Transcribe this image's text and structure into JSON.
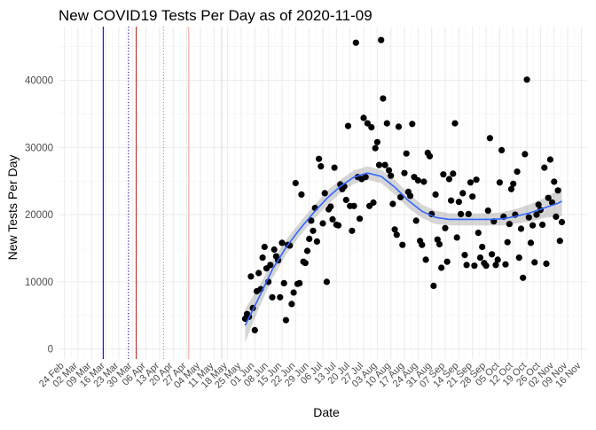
{
  "chart_data": {
    "type": "scatter",
    "title": "New COVID19 Tests Per Day as of 2020-11-09",
    "xlabel": "Date",
    "ylabel": "New Tests Per Day",
    "xlim": [
      "2020-02-21",
      "2020-11-19"
    ],
    "ylim": [
      -1500,
      48000
    ],
    "yticks": [
      0,
      10000,
      20000,
      30000,
      40000
    ],
    "xticks": [
      "24 Feb",
      "02 Mar",
      "09 Mar",
      "16 Mar",
      "23 Mar",
      "30 Mar",
      "06 Apr",
      "13 Apr",
      "20 Apr",
      "27 Apr",
      "04 May",
      "11 May",
      "18 May",
      "25 May",
      "01 Jun",
      "08 Jun",
      "15 Jun",
      "22 Jun",
      "29 Jun",
      "06 Jul",
      "13 Jul",
      "20 Jul",
      "27 Jul",
      "03 Aug",
      "10 Aug",
      "17 Aug",
      "24 Aug",
      "31 Aug",
      "07 Sep",
      "14 Sep",
      "21 Sep",
      "28 Sep",
      "05 Oct",
      "12 Oct",
      "19 Oct",
      "26 Oct",
      "02 Nov",
      "09 Nov",
      "16 Nov"
    ],
    "grid": true,
    "vlines": [
      {
        "date": "2020-03-15",
        "color": "#0000ff",
        "style": "solid"
      },
      {
        "date": "2020-03-28",
        "color": "#00008b",
        "style": "dotted"
      },
      {
        "date": "2020-04-01",
        "color": "#b22222",
        "style": "solid"
      },
      {
        "date": "2020-04-15",
        "color": "#cd853f",
        "style": "dotted"
      },
      {
        "date": "2020-04-28",
        "color": "#f4a6a6",
        "style": "solid"
      },
      {
        "date": "2020-05-15",
        "color": "#dddddd",
        "style": "solid"
      }
    ],
    "series": [
      {
        "type": "scatter",
        "color": "#000000",
        "points": [
          [
            "2020-05-27",
            4500
          ],
          [
            "2020-05-28",
            5200
          ],
          [
            "2020-05-29",
            4800
          ],
          [
            "2020-05-30",
            10800
          ],
          [
            "2020-05-31",
            6100
          ],
          [
            "2020-06-01",
            2800
          ],
          [
            "2020-06-02",
            8600
          ],
          [
            "2020-06-03",
            11300
          ],
          [
            "2020-06-04",
            8900
          ],
          [
            "2020-06-05",
            13600
          ],
          [
            "2020-06-06",
            15200
          ],
          [
            "2020-06-07",
            12000
          ],
          [
            "2020-06-08",
            10000
          ],
          [
            "2020-06-09",
            12500
          ],
          [
            "2020-06-10",
            7700
          ],
          [
            "2020-06-11",
            14800
          ],
          [
            "2020-06-12",
            13800
          ],
          [
            "2020-06-13",
            13200
          ],
          [
            "2020-06-14",
            7700
          ],
          [
            "2020-06-15",
            15800
          ],
          [
            "2020-06-16",
            9800
          ],
          [
            "2020-06-17",
            4300
          ],
          [
            "2020-06-18",
            15500
          ],
          [
            "2020-06-19",
            15400
          ],
          [
            "2020-06-20",
            6700
          ],
          [
            "2020-06-21",
            8400
          ],
          [
            "2020-06-22",
            24700
          ],
          [
            "2020-06-23",
            9700
          ],
          [
            "2020-06-24",
            9800
          ],
          [
            "2020-06-25",
            23000
          ],
          [
            "2020-06-26",
            13000
          ],
          [
            "2020-06-27",
            12800
          ],
          [
            "2020-06-28",
            14600
          ],
          [
            "2020-06-29",
            16400
          ],
          [
            "2020-06-30",
            19100
          ],
          [
            "2020-07-01",
            17600
          ],
          [
            "2020-07-02",
            21000
          ],
          [
            "2020-07-03",
            16000
          ],
          [
            "2020-07-04",
            28300
          ],
          [
            "2020-07-05",
            27200
          ],
          [
            "2020-07-06",
            18700
          ],
          [
            "2020-07-07",
            23200
          ],
          [
            "2020-07-08",
            10000
          ],
          [
            "2020-07-09",
            20800
          ],
          [
            "2020-07-10",
            21200
          ],
          [
            "2020-07-11",
            19300
          ],
          [
            "2020-07-12",
            27000
          ],
          [
            "2020-07-13",
            18500
          ],
          [
            "2020-07-14",
            18400
          ],
          [
            "2020-07-15",
            24500
          ],
          [
            "2020-07-16",
            23800
          ],
          [
            "2020-07-17",
            24200
          ],
          [
            "2020-07-18",
            22200
          ],
          [
            "2020-07-19",
            33200
          ],
          [
            "2020-07-20",
            21300
          ],
          [
            "2020-07-21",
            17600
          ],
          [
            "2020-07-22",
            21300
          ],
          [
            "2020-07-23",
            45600
          ],
          [
            "2020-07-24",
            25600
          ],
          [
            "2020-07-25",
            19400
          ],
          [
            "2020-07-26",
            25300
          ],
          [
            "2020-07-27",
            34400
          ],
          [
            "2020-07-28",
            25600
          ],
          [
            "2020-07-29",
            33600
          ],
          [
            "2020-07-30",
            21300
          ],
          [
            "2020-07-31",
            33000
          ],
          [
            "2020-08-01",
            21800
          ],
          [
            "2020-08-02",
            29900
          ],
          [
            "2020-08-03",
            30800
          ],
          [
            "2020-08-04",
            27400
          ],
          [
            "2020-08-05",
            46000
          ],
          [
            "2020-08-06",
            37300
          ],
          [
            "2020-08-07",
            27400
          ],
          [
            "2020-08-08",
            33600
          ],
          [
            "2020-08-09",
            26600
          ],
          [
            "2020-08-10",
            25800
          ],
          [
            "2020-08-11",
            21600
          ],
          [
            "2020-08-12",
            17800
          ],
          [
            "2020-08-13",
            17000
          ],
          [
            "2020-08-14",
            33100
          ],
          [
            "2020-08-15",
            22600
          ],
          [
            "2020-08-16",
            15500
          ],
          [
            "2020-08-17",
            26200
          ],
          [
            "2020-08-18",
            29100
          ],
          [
            "2020-08-19",
            23400
          ],
          [
            "2020-08-20",
            22800
          ],
          [
            "2020-08-21",
            33500
          ],
          [
            "2020-08-22",
            25600
          ],
          [
            "2020-08-23",
            19100
          ],
          [
            "2020-08-24",
            25100
          ],
          [
            "2020-08-25",
            16100
          ],
          [
            "2020-08-26",
            15500
          ],
          [
            "2020-08-27",
            24900
          ],
          [
            "2020-08-28",
            13300
          ],
          [
            "2020-08-29",
            29200
          ],
          [
            "2020-08-30",
            28700
          ],
          [
            "2020-08-31",
            20100
          ],
          [
            "2020-09-01",
            9400
          ],
          [
            "2020-09-02",
            23000
          ],
          [
            "2020-09-03",
            16300
          ],
          [
            "2020-09-04",
            15600
          ],
          [
            "2020-09-05",
            12100
          ],
          [
            "2020-09-06",
            26000
          ],
          [
            "2020-09-07",
            18000
          ],
          [
            "2020-09-08",
            13000
          ],
          [
            "2020-09-09",
            25300
          ],
          [
            "2020-09-10",
            22100
          ],
          [
            "2020-09-11",
            26100
          ],
          [
            "2020-09-12",
            33600
          ],
          [
            "2020-09-13",
            16600
          ],
          [
            "2020-09-14",
            21900
          ],
          [
            "2020-09-15",
            20100
          ],
          [
            "2020-09-16",
            23200
          ],
          [
            "2020-09-17",
            14000
          ],
          [
            "2020-09-18",
            12500
          ],
          [
            "2020-09-19",
            20100
          ],
          [
            "2020-09-20",
            24800
          ],
          [
            "2020-09-21",
            22700
          ],
          [
            "2020-09-22",
            12400
          ],
          [
            "2020-09-23",
            25200
          ],
          [
            "2020-09-24",
            17300
          ],
          [
            "2020-09-25",
            13600
          ],
          [
            "2020-09-26",
            15200
          ],
          [
            "2020-09-27",
            12800
          ],
          [
            "2020-09-28",
            12400
          ],
          [
            "2020-09-29",
            20600
          ],
          [
            "2020-09-30",
            31400
          ],
          [
            "2020-10-01",
            14100
          ],
          [
            "2020-10-02",
            19000
          ],
          [
            "2020-10-03",
            12500
          ],
          [
            "2020-10-04",
            13300
          ],
          [
            "2020-10-05",
            24800
          ],
          [
            "2020-10-06",
            29600
          ],
          [
            "2020-10-07",
            19700
          ],
          [
            "2020-10-08",
            12600
          ],
          [
            "2020-10-09",
            15900
          ],
          [
            "2020-10-10",
            18600
          ],
          [
            "2020-10-11",
            23800
          ],
          [
            "2020-10-12",
            24600
          ],
          [
            "2020-10-13",
            20000
          ],
          [
            "2020-10-14",
            26400
          ],
          [
            "2020-10-15",
            13600
          ],
          [
            "2020-10-16",
            17900
          ],
          [
            "2020-10-17",
            10600
          ],
          [
            "2020-10-18",
            29000
          ],
          [
            "2020-10-19",
            40100
          ],
          [
            "2020-10-20",
            19600
          ],
          [
            "2020-10-21",
            15800
          ],
          [
            "2020-10-22",
            18400
          ],
          [
            "2020-10-23",
            12900
          ],
          [
            "2020-10-24",
            20000
          ],
          [
            "2020-10-25",
            21500
          ],
          [
            "2020-10-26",
            20700
          ],
          [
            "2020-10-27",
            18500
          ],
          [
            "2020-10-28",
            27000
          ],
          [
            "2020-10-29",
            12700
          ],
          [
            "2020-10-30",
            22500
          ],
          [
            "2020-10-31",
            28200
          ],
          [
            "2020-11-01",
            21800
          ],
          [
            "2020-11-02",
            24900
          ],
          [
            "2020-11-03",
            19700
          ],
          [
            "2020-11-04",
            23600
          ],
          [
            "2020-11-05",
            16100
          ],
          [
            "2020-11-06",
            18900
          ]
        ]
      },
      {
        "type": "smooth",
        "color": "#3366ff",
        "band_color": "#999999",
        "points": [
          [
            "2020-05-27",
            3500,
            1000,
            6000
          ],
          [
            "2020-06-03",
            7600,
            6000,
            9200
          ],
          [
            "2020-06-10",
            11800,
            10500,
            13100
          ],
          [
            "2020-06-17",
            15100,
            14000,
            16200
          ],
          [
            "2020-06-24",
            17800,
            16800,
            18800
          ],
          [
            "2020-07-01",
            20200,
            19200,
            21200
          ],
          [
            "2020-07-08",
            22400,
            21300,
            23500
          ],
          [
            "2020-07-15",
            24200,
            23200,
            25200
          ],
          [
            "2020-07-22",
            25600,
            24600,
            26600
          ],
          [
            "2020-07-29",
            26200,
            25200,
            27200
          ],
          [
            "2020-08-05",
            25700,
            24700,
            26700
          ],
          [
            "2020-08-12",
            24100,
            23000,
            25200
          ],
          [
            "2020-08-19",
            22100,
            21000,
            23200
          ],
          [
            "2020-08-26",
            20500,
            19500,
            21500
          ],
          [
            "2020-09-02",
            19600,
            18600,
            20600
          ],
          [
            "2020-09-09",
            19300,
            18400,
            20200
          ],
          [
            "2020-09-16",
            19300,
            18400,
            20200
          ],
          [
            "2020-09-23",
            19300,
            18400,
            20200
          ],
          [
            "2020-09-30",
            19300,
            18400,
            20200
          ],
          [
            "2020-10-07",
            19400,
            18400,
            20400
          ],
          [
            "2020-10-14",
            19800,
            18700,
            20900
          ],
          [
            "2020-10-21",
            20300,
            19000,
            21600
          ],
          [
            "2020-10-28",
            21000,
            19500,
            22500
          ],
          [
            "2020-11-04",
            21700,
            19800,
            23600
          ],
          [
            "2020-11-06",
            22000,
            19800,
            24200
          ]
        ]
      }
    ]
  }
}
